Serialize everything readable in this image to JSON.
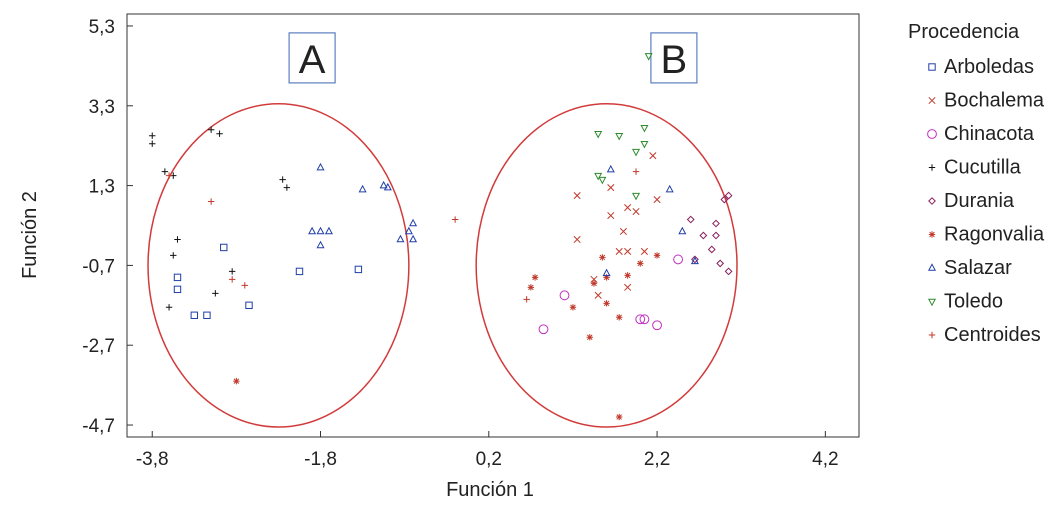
{
  "chart_data": {
    "type": "scatter",
    "title": "",
    "xlabel": "Función 1",
    "ylabel": "Función 2",
    "xlim": [
      -4.1,
      4.6
    ],
    "ylim": [
      -5.0,
      5.6
    ],
    "xticks": [
      -3.8,
      -1.8,
      0.2,
      2.2,
      4.2
    ],
    "xtick_labels": [
      "-3,8",
      "-1,8",
      "0,2",
      "2,2",
      "4,2"
    ],
    "yticks": [
      5.3,
      3.3,
      1.3,
      -0.7,
      -2.7,
      -4.7
    ],
    "ytick_labels": [
      "5,3",
      "3,3",
      "1,3",
      "-0,7",
      "-2,7",
      "-4,7"
    ],
    "legend_title": "Procedencia",
    "legend_position": "right",
    "annotations": [
      {
        "text": "A",
        "x": -1.9,
        "y": 4.5
      },
      {
        "text": "B",
        "x": 2.4,
        "y": 4.5
      }
    ],
    "ellipses": [
      {
        "name": "A",
        "cx": -2.3,
        "cy": -0.7,
        "rx": 1.55,
        "ry": 4.05
      },
      {
        "name": "B",
        "cx": 1.6,
        "cy": -0.7,
        "rx": 1.55,
        "ry": 4.05
      }
    ],
    "series": [
      {
        "name": "Arboledas",
        "marker": "square",
        "color": "#1f3fa8",
        "points": [
          [
            -2.95,
            -0.25
          ],
          [
            -3.5,
            -1.0
          ],
          [
            -3.5,
            -1.3
          ],
          [
            -3.15,
            -1.95
          ],
          [
            -3.3,
            -1.95
          ],
          [
            -2.65,
            -1.7
          ],
          [
            -2.05,
            -0.85
          ],
          [
            -1.35,
            -0.8
          ]
        ]
      },
      {
        "name": "Bochalema",
        "marker": "x",
        "color": "#c0392b",
        "points": [
          [
            1.25,
            1.05
          ],
          [
            1.25,
            -0.05
          ],
          [
            1.65,
            1.25
          ],
          [
            1.85,
            0.75
          ],
          [
            1.95,
            0.65
          ],
          [
            1.65,
            0.55
          ],
          [
            1.8,
            0.15
          ],
          [
            1.85,
            -0.35
          ],
          [
            2.15,
            2.05
          ],
          [
            2.2,
            0.95
          ],
          [
            2.05,
            -0.35
          ],
          [
            1.75,
            -0.35
          ],
          [
            1.45,
            -1.05
          ],
          [
            1.5,
            -1.45
          ],
          [
            1.85,
            -1.25
          ]
        ]
      },
      {
        "name": "Chinacota",
        "marker": "circle",
        "color": "#c030c0",
        "points": [
          [
            0.85,
            -2.3
          ],
          [
            1.1,
            -1.45
          ],
          [
            2.0,
            -2.05
          ],
          [
            2.05,
            -2.05
          ],
          [
            2.2,
            -2.2
          ],
          [
            2.45,
            -0.55
          ]
        ]
      },
      {
        "name": "Cucutilla",
        "marker": "plus",
        "color": "#111111",
        "points": [
          [
            -3.8,
            2.55
          ],
          [
            -3.8,
            2.35
          ],
          [
            -3.65,
            1.65
          ],
          [
            -3.55,
            1.55
          ],
          [
            -3.5,
            -0.05
          ],
          [
            -3.55,
            -0.45
          ],
          [
            -3.1,
            2.7
          ],
          [
            -3.0,
            2.6
          ],
          [
            -2.85,
            -0.85
          ],
          [
            -3.05,
            -1.4
          ],
          [
            -3.6,
            -1.75
          ],
          [
            -2.25,
            1.45
          ],
          [
            -2.2,
            1.25
          ]
        ]
      },
      {
        "name": "Durania",
        "marker": "diamond",
        "color": "#8a1f5a",
        "points": [
          [
            2.6,
            0.45
          ],
          [
            2.75,
            0.05
          ],
          [
            2.65,
            -0.55
          ],
          [
            2.85,
            -0.3
          ],
          [
            2.95,
            -0.65
          ],
          [
            3.05,
            -0.85
          ],
          [
            2.9,
            0.05
          ],
          [
            2.9,
            0.35
          ],
          [
            3.0,
            0.95
          ],
          [
            3.05,
            1.05
          ]
        ]
      },
      {
        "name": "Ragonvalia",
        "marker": "asterisk",
        "color": "#c0392b",
        "points": [
          [
            0.75,
            -1.0
          ],
          [
            0.7,
            -1.25
          ],
          [
            1.2,
            -1.75
          ],
          [
            1.45,
            -1.15
          ],
          [
            1.55,
            -0.5
          ],
          [
            1.6,
            -1.0
          ],
          [
            1.6,
            -1.65
          ],
          [
            1.85,
            -0.95
          ],
          [
            1.4,
            -2.5
          ],
          [
            1.75,
            -2.0
          ],
          [
            2.0,
            -0.65
          ],
          [
            2.2,
            -0.45
          ],
          [
            1.75,
            -4.5
          ],
          [
            -2.8,
            -3.6
          ]
        ]
      },
      {
        "name": "Salazar",
        "marker": "triangle",
        "color": "#1f3fa8",
        "points": [
          [
            -1.8,
            1.75
          ],
          [
            -1.9,
            0.15
          ],
          [
            -1.8,
            0.15
          ],
          [
            -1.7,
            0.15
          ],
          [
            -1.8,
            -0.2
          ],
          [
            -1.3,
            1.2
          ],
          [
            -1.05,
            1.3
          ],
          [
            -1.0,
            1.25
          ],
          [
            -0.85,
            -0.05
          ],
          [
            -0.75,
            0.15
          ],
          [
            -0.7,
            0.35
          ],
          [
            -0.7,
            -0.05
          ],
          [
            1.65,
            1.7
          ],
          [
            1.6,
            -0.9
          ],
          [
            2.35,
            1.2
          ],
          [
            2.5,
            0.15
          ],
          [
            2.65,
            -0.6
          ]
        ]
      },
      {
        "name": "Toledo",
        "marker": "triangle-down",
        "color": "#2e8b2e",
        "points": [
          [
            1.5,
            2.6
          ],
          [
            1.75,
            2.55
          ],
          [
            1.5,
            1.55
          ],
          [
            1.55,
            1.45
          ],
          [
            1.95,
            1.05
          ],
          [
            1.95,
            2.15
          ],
          [
            2.05,
            2.35
          ],
          [
            2.05,
            2.75
          ],
          [
            2.1,
            4.55
          ]
        ]
      },
      {
        "name": "Centroides",
        "marker": "plus",
        "color": "#c0392b",
        "points": [
          [
            -3.1,
            0.9
          ],
          [
            -3.6,
            1.55
          ],
          [
            -2.85,
            -1.05
          ],
          [
            -2.7,
            -1.2
          ],
          [
            -0.2,
            0.45
          ],
          [
            0.65,
            -1.55
          ],
          [
            1.95,
            1.65
          ]
        ]
      }
    ]
  }
}
